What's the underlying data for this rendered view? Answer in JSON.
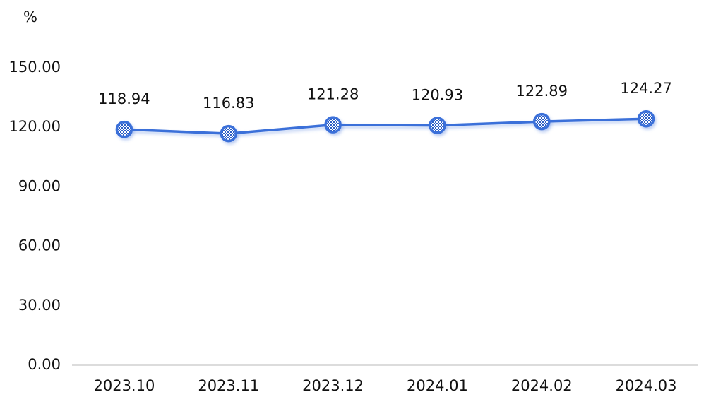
{
  "chart_data": {
    "type": "line",
    "y_label": "%",
    "categories": [
      "2023.10",
      "2023.11",
      "2023.12",
      "2024.01",
      "2024.02",
      "2024.03"
    ],
    "values": [
      118.94,
      116.83,
      121.28,
      120.93,
      122.89,
      124.27
    ],
    "color": "#3b6fd9",
    "ylim": [
      0,
      150
    ],
    "yticks": [
      {
        "value": 0,
        "label": "0.00"
      },
      {
        "value": 30,
        "label": "30.00"
      },
      {
        "value": 60,
        "label": "60.00"
      },
      {
        "value": 90,
        "label": "90.00"
      },
      {
        "value": 120,
        "label": "120.00"
      },
      {
        "value": 150,
        "label": "150.00"
      }
    ],
    "grid": false
  }
}
